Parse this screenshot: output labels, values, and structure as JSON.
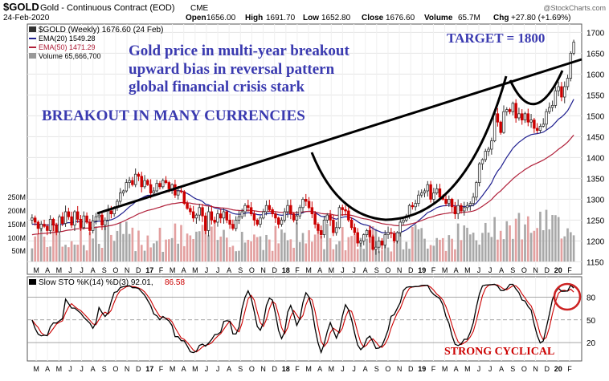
{
  "header": {
    "symbol": "$GOLD",
    "description": "Gold - Continuous Contract (EOD)",
    "exchange": "CME",
    "date": "24-Feb-2020",
    "open_label": "Open",
    "open": "1656.00",
    "high_label": "High",
    "high": "1691.70",
    "low_label": "Low",
    "low": "1652.80",
    "close_label": "Close",
    "close": "1676.60",
    "volume_label": "Volume",
    "volume": "65.7M",
    "chg_label": "Chg",
    "chg": "+27.80 (+1.69%)",
    "brand": "@StockCharts.com"
  },
  "legend": {
    "main": "$GOLD (Weekly) 1676.60 (24 Feb)",
    "ema20": "EMA(20) 1549.28",
    "ema50": "EMA(50) 1471.29",
    "volume": "Volume 65,666,700"
  },
  "annotations": {
    "target": "TARGET = 1800",
    "line1": "Gold price in multi-year breakout",
    "line2": "upward bias in reversal pattern",
    "line3": "global financial crisis stark",
    "breakout": "BREAKOUT IN MANY CURRENCIES",
    "cyclical": "STRONG CYCLICAL"
  },
  "colors": {
    "up": "#333333",
    "down": "#cc0000",
    "ema20": "#1f1f8f",
    "ema50": "#b0203a",
    "annotation": "#3a3ab0",
    "cyclical": "#cc0000",
    "vol_up": "#a8a8a8",
    "vol_down": "#e3a0a0",
    "stoch_k": "#000000",
    "stoch_d": "#cc0000"
  },
  "chart_data": [
    {
      "type": "candlestick",
      "title": "$GOLD (Weekly) 1676.60 (24 Feb)",
      "interval": "weekly",
      "x_range": [
        "2016-03",
        "2020-02"
      ],
      "ylim": [
        1120,
        1720
      ],
      "yticks": [
        "1700",
        "1650",
        "1600",
        "1550",
        "1500",
        "1450",
        "1400",
        "1350",
        "1300",
        "1250",
        "1200",
        "1150"
      ],
      "x_ticks": [
        "M",
        "A",
        "M",
        "J",
        "J",
        "A",
        "S",
        "O",
        "N",
        "D",
        "17",
        "F",
        "M",
        "A",
        "M",
        "J",
        "J",
        "A",
        "S",
        "O",
        "N",
        "D",
        "18",
        "F",
        "M",
        "A",
        "M",
        "J",
        "J",
        "A",
        "S",
        "O",
        "N",
        "D",
        "19",
        "F",
        "M",
        "A",
        "M",
        "J",
        "J",
        "A",
        "S",
        "O",
        "N",
        "D",
        "20",
        "F"
      ],
      "closes": [
        1255,
        1245,
        1230,
        1240,
        1235,
        1225,
        1252,
        1238,
        1222,
        1258,
        1242,
        1270,
        1258,
        1238,
        1270,
        1252,
        1232,
        1260,
        1245,
        1225,
        1248,
        1258,
        1262,
        1238,
        1250,
        1272,
        1265,
        1280,
        1295,
        1315,
        1320,
        1340,
        1345,
        1335,
        1360,
        1355,
        1330,
        1345,
        1335,
        1315,
        1320,
        1338,
        1330,
        1345,
        1340,
        1325,
        1335,
        1310,
        1320,
        1318,
        1290,
        1278,
        1270,
        1255,
        1262,
        1280,
        1260,
        1225,
        1270,
        1250,
        1245,
        1265,
        1255,
        1270,
        1250,
        1240,
        1230,
        1250,
        1258,
        1270,
        1285,
        1280,
        1265,
        1250,
        1240,
        1255,
        1270,
        1285,
        1275,
        1265,
        1255,
        1240,
        1250,
        1270,
        1285,
        1265,
        1250,
        1260,
        1280,
        1300,
        1295,
        1280,
        1265,
        1240,
        1225,
        1215,
        1250,
        1262,
        1250,
        1220,
        1232,
        1280,
        1275,
        1272,
        1250,
        1232,
        1220,
        1195,
        1200,
        1215,
        1225,
        1210,
        1180,
        1185,
        1200,
        1190,
        1215,
        1220,
        1218,
        1200,
        1220,
        1245,
        1250,
        1260,
        1285,
        1282,
        1290,
        1310,
        1315,
        1320,
        1335,
        1300,
        1315,
        1325,
        1305,
        1300,
        1290,
        1300,
        1282,
        1265,
        1285,
        1272,
        1280,
        1285,
        1290,
        1305,
        1340,
        1385,
        1395,
        1415,
        1420,
        1440,
        1505,
        1485,
        1460,
        1510,
        1515,
        1510,
        1530,
        1495,
        1505,
        1490,
        1505,
        1485,
        1490,
        1470,
        1465,
        1475,
        1480,
        1510,
        1520,
        1525,
        1560,
        1570,
        1545,
        1570,
        1590,
        1650,
        1676.6
      ],
      "ema20": "EMA(20) 1549.28",
      "ema50": "EMA(50) 1471.29",
      "volume_scale": [
        "250M",
        "200M",
        "150M",
        "100M",
        "50M"
      ],
      "volume_last": "65,666,700",
      "trendlines": [
        {
          "name": "resistance",
          "from": [
            "2016-04",
            1210
          ],
          "to": [
            "2020-02",
            1615
          ]
        }
      ],
      "patterns": [
        "cup and handle reversal"
      ],
      "annotations": [
        "TARGET = 1800",
        "Gold price in multi-year breakout",
        "upward bias in reversal pattern",
        "global financial crisis stark",
        "BREAKOUT IN MANY CURRENCIES"
      ]
    },
    {
      "type": "line",
      "title": "Slow STO %K(14) %D(3) 92.01, 86.58",
      "ylim": [
        0,
        100
      ],
      "yticks": [
        "80",
        "50",
        "20"
      ],
      "series": [
        {
          "name": "%K(14)",
          "last": 92.01
        },
        {
          "name": "%D(3)",
          "last": 86.58
        }
      ],
      "annotations": [
        "STRONG CYCLICAL"
      ]
    }
  ],
  "stoch": {
    "label": "Slow STO %K(14) %D(3) 92.01,",
    "d_value": "86.58"
  }
}
